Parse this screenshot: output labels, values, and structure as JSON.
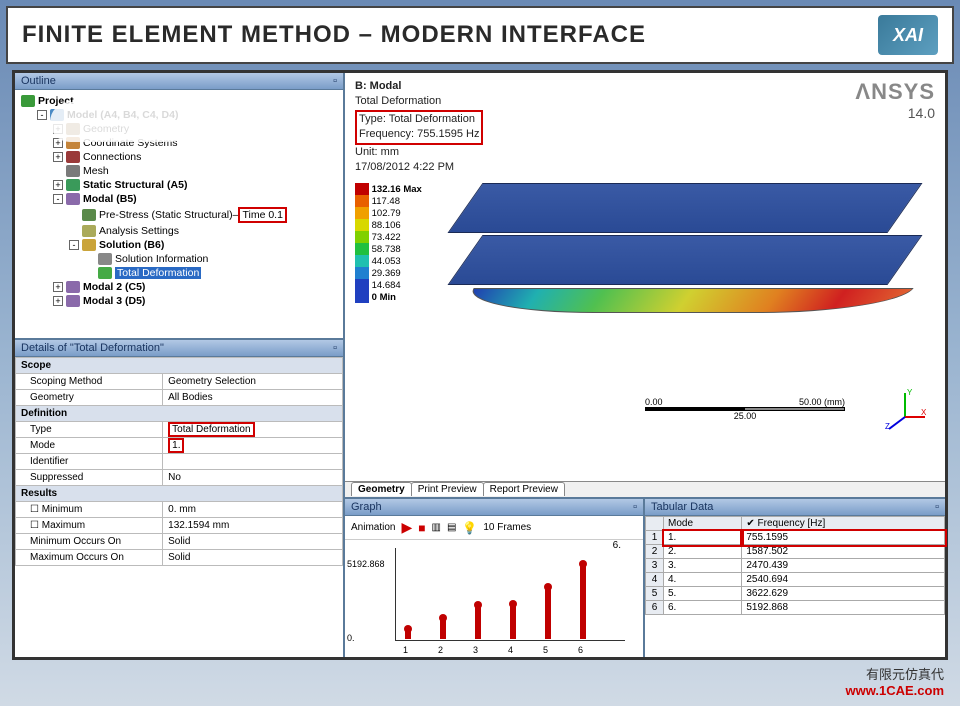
{
  "title": "FINITE ELEMENT METHOD – MODERN INTERFACE",
  "logo_text": "XAI",
  "ansys": {
    "brand": "ΛNSYS",
    "version": "14.0"
  },
  "outline": {
    "header": "Outline",
    "project": "Project",
    "model": "Model (A4, B4, C4, D4)",
    "geometry": "Geometry",
    "coord": "Coordinate Systems",
    "connections": "Connections",
    "mesh": "Mesh",
    "static": "Static Structural (A5)",
    "modal_b5": "Modal (B5)",
    "prestress": "Pre-Stress (Static Structural)",
    "prestress_time": "Time 0.1",
    "analysis_settings": "Analysis Settings",
    "solution_b6": "Solution (B6)",
    "sol_info": "Solution Information",
    "total_def": "Total Deformation",
    "modal2": "Modal 2 (C5)",
    "modal3": "Modal 3 (D5)"
  },
  "details": {
    "header": "Details of \"Total Deformation\"",
    "scope": "Scope",
    "scoping_method_l": "Scoping Method",
    "scoping_method_v": "Geometry Selection",
    "geometry_l": "Geometry",
    "geometry_v": "All Bodies",
    "definition": "Definition",
    "type_l": "Type",
    "type_v": "Total Deformation",
    "mode_l": "Mode",
    "mode_v": "1.",
    "identifier_l": "Identifier",
    "identifier_v": "",
    "suppressed_l": "Suppressed",
    "suppressed_v": "No",
    "results": "Results",
    "minimum_l": "Minimum",
    "minimum_v": "0. mm",
    "maximum_l": "Maximum",
    "maximum_v": "132.1594 mm",
    "min_on_l": "Minimum Occurs On",
    "min_on_v": "Solid",
    "max_on_l": "Maximum Occurs On",
    "max_on_v": "Solid"
  },
  "viewport": {
    "title": "B: Modal",
    "result": "Total Deformation",
    "type": "Type: Total Deformation",
    "freq": "Frequency: 755.1595 Hz",
    "unit": "Unit: mm",
    "date": "17/08/2012 4:22 PM",
    "legend_top": "132.16 Max",
    "legend_vals": [
      "117.48",
      "102.79",
      "88.106",
      "73.422",
      "58.738",
      "44.053",
      "29.369",
      "14.684"
    ],
    "legend_bot": "0 Min",
    "legend_colors": [
      "#c00000",
      "#e86000",
      "#f0a000",
      "#d8d800",
      "#80d000",
      "#20c040",
      "#20c0b0",
      "#2080d0",
      "#2040c0"
    ],
    "scale_left": "0.00",
    "scale_mid": "25.00",
    "scale_right": "50.00 (mm)",
    "tabs": [
      "Geometry",
      "Print Preview",
      "Report Preview"
    ]
  },
  "graph": {
    "header": "Graph",
    "anim_label": "Animation",
    "frames": "10 Frames",
    "ymax": "5192.868",
    "yzero": "0.",
    "xlabels": [
      "1",
      "2",
      "3",
      "4",
      "5",
      "6"
    ],
    "bars": [
      10,
      21,
      34,
      35,
      52,
      75
    ],
    "bar_color": "#c00000",
    "top_label": "6."
  },
  "tabular": {
    "header": "Tabular Data",
    "cols": [
      "",
      "Mode",
      "✔ Frequency [Hz]"
    ],
    "rows": [
      [
        "1",
        "1.",
        "755.1595"
      ],
      [
        "2",
        "2.",
        "1587.502"
      ],
      [
        "3",
        "3.",
        "2470.439"
      ],
      [
        "4",
        "4.",
        "2540.694"
      ],
      [
        "5",
        "5.",
        "3622.629"
      ],
      [
        "6",
        "6.",
        "5192.868"
      ]
    ]
  },
  "watermark": "1CAE.COM",
  "footer_text": "有限元仿真代",
  "footer_url": "www.1CAE.com"
}
